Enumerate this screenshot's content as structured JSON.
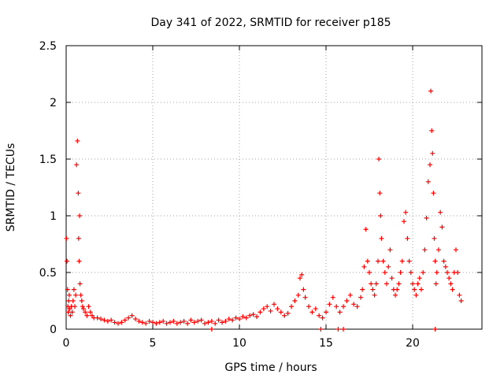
{
  "chart_data": {
    "type": "scatter",
    "title": "Day 341 of 2022, SRMTID for receiver p185",
    "xlabel": "GPS time / hours",
    "ylabel": "SRMTID / TECUs",
    "xlim": [
      0,
      24
    ],
    "ylim": [
      0,
      2.5
    ],
    "xticks": [
      0,
      5,
      10,
      15,
      20
    ],
    "yticks": [
      0,
      0.5,
      1,
      1.5,
      2,
      2.5
    ],
    "xtick_labels": [
      "0",
      "5",
      "10",
      "15",
      "20"
    ],
    "ytick_labels": [
      "0",
      "0.5",
      "1",
      "1.5",
      "2",
      "2.5"
    ],
    "grid": true,
    "marker": "+",
    "color": "#ff0000",
    "series": [
      {
        "name": "SRMTID",
        "x": [
          0.02,
          0.05,
          0.08,
          0.1,
          0.12,
          0.15,
          0.18,
          0.2,
          0.25,
          0.3,
          0.35,
          0.4,
          0.45,
          0.5,
          0.55,
          0.6,
          0.65,
          0.7,
          0.72,
          0.75,
          0.78,
          0.8,
          0.85,
          0.9,
          0.95,
          1.0,
          1.1,
          1.2,
          1.3,
          1.4,
          1.5,
          1.6,
          1.8,
          2.0,
          2.2,
          2.4,
          2.6,
          2.8,
          3.0,
          3.2,
          3.4,
          3.6,
          3.8,
          4.0,
          4.2,
          4.4,
          4.6,
          4.8,
          5.0,
          5.2,
          5.4,
          5.6,
          5.8,
          6.0,
          6.2,
          6.4,
          6.6,
          6.8,
          7.0,
          7.2,
          7.4,
          7.6,
          7.8,
          8.0,
          8.2,
          8.4,
          8.6,
          8.8,
          9.0,
          9.2,
          9.4,
          9.6,
          9.8,
          10.0,
          10.2,
          10.4,
          10.6,
          10.8,
          11.0,
          11.2,
          11.4,
          11.6,
          11.8,
          12.0,
          12.2,
          12.4,
          12.6,
          12.8,
          13.0,
          13.2,
          13.4,
          13.5,
          13.6,
          13.7,
          13.8,
          14.0,
          14.2,
          14.4,
          14.6,
          14.8,
          15.0,
          15.2,
          15.4,
          15.6,
          15.8,
          16.0,
          16.2,
          16.4,
          16.6,
          16.8,
          17.0,
          17.1,
          17.2,
          17.3,
          17.4,
          17.5,
          17.6,
          17.7,
          17.8,
          17.9,
          18.0,
          18.05,
          18.1,
          18.15,
          18.2,
          18.3,
          18.4,
          18.5,
          18.6,
          18.7,
          18.8,
          18.9,
          19.0,
          19.1,
          19.2,
          19.3,
          19.4,
          19.5,
          19.6,
          19.7,
          19.8,
          19.9,
          20.0,
          20.1,
          20.2,
          20.3,
          20.4,
          20.5,
          20.6,
          20.7,
          20.8,
          20.9,
          21.0,
          21.05,
          21.1,
          21.15,
          21.2,
          21.25,
          21.3,
          21.35,
          21.4,
          21.5,
          21.6,
          21.7,
          21.8,
          21.9,
          22.0,
          22.1,
          22.2,
          22.3,
          22.4,
          22.5,
          22.6,
          22.7,
          22.8,
          8.4,
          14.7,
          15.7,
          16.0,
          21.3
        ],
        "y": [
          0.8,
          0.6,
          0.35,
          0.2,
          0.15,
          0.25,
          0.3,
          0.18,
          0.12,
          0.2,
          0.15,
          0.25,
          0.35,
          0.2,
          0.3,
          1.45,
          1.66,
          1.2,
          0.8,
          0.6,
          1.0,
          0.4,
          0.3,
          0.25,
          0.2,
          0.18,
          0.15,
          0.12,
          0.2,
          0.15,
          0.12,
          0.1,
          0.1,
          0.09,
          0.08,
          0.07,
          0.08,
          0.06,
          0.05,
          0.06,
          0.08,
          0.1,
          0.12,
          0.09,
          0.07,
          0.06,
          0.05,
          0.07,
          0.06,
          0.05,
          0.06,
          0.07,
          0.05,
          0.06,
          0.07,
          0.05,
          0.06,
          0.07,
          0.05,
          0.08,
          0.06,
          0.07,
          0.08,
          0.05,
          0.06,
          0.07,
          0.05,
          0.08,
          0.06,
          0.07,
          0.09,
          0.08,
          0.1,
          0.09,
          0.11,
          0.1,
          0.12,
          0.13,
          0.11,
          0.15,
          0.18,
          0.2,
          0.16,
          0.22,
          0.18,
          0.15,
          0.12,
          0.14,
          0.2,
          0.25,
          0.3,
          0.45,
          0.48,
          0.35,
          0.28,
          0.2,
          0.15,
          0.18,
          0.12,
          0.1,
          0.15,
          0.22,
          0.28,
          0.2,
          0.15,
          0.2,
          0.25,
          0.3,
          0.22,
          0.2,
          0.28,
          0.35,
          0.55,
          0.88,
          0.6,
          0.5,
          0.4,
          0.35,
          0.3,
          0.4,
          0.6,
          1.5,
          1.2,
          1.0,
          0.8,
          0.6,
          0.5,
          0.4,
          0.55,
          0.7,
          0.45,
          0.35,
          0.3,
          0.35,
          0.4,
          0.5,
          0.6,
          0.95,
          1.03,
          0.8,
          0.6,
          0.5,
          0.4,
          0.35,
          0.3,
          0.4,
          0.45,
          0.35,
          0.5,
          0.7,
          0.98,
          1.3,
          1.45,
          2.1,
          1.75,
          1.55,
          1.2,
          0.8,
          0.6,
          0.4,
          0.5,
          0.7,
          1.03,
          0.9,
          0.6,
          0.55,
          0.5,
          0.45,
          0.4,
          0.35,
          0.5,
          0.7,
          0.5,
          0.3,
          0.25,
          0.0,
          0.0,
          0.0,
          0.0,
          0.0
        ]
      }
    ]
  }
}
